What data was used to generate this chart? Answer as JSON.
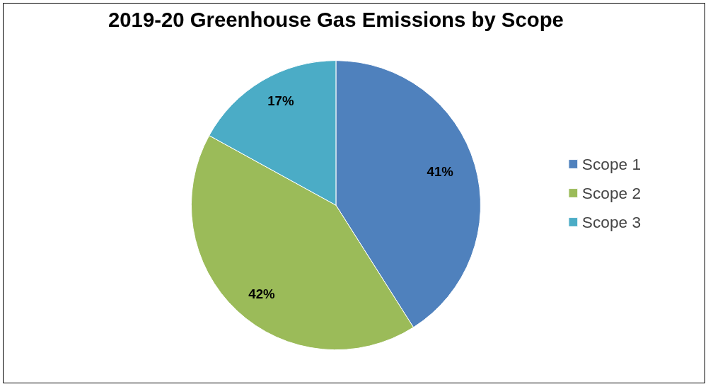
{
  "chart_data": {
    "type": "pie",
    "title": "2019-20 Greenhouse Gas Emissions by Scope",
    "categories": [
      "Scope 1",
      "Scope 2",
      "Scope 3"
    ],
    "values": [
      41,
      42,
      17
    ],
    "colors": [
      "#4f81bd",
      "#9bbb59",
      "#4bacc6"
    ],
    "value_labels": [
      "41%",
      "42%",
      "17%"
    ],
    "legend": "right"
  }
}
